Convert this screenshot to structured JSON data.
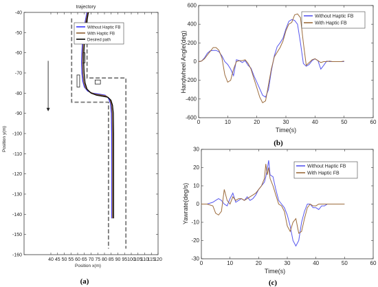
{
  "chart_data": [
    {
      "type": "line",
      "panel_label": "(a)",
      "title": "trajectory",
      "xlabel": "Position x(m)",
      "ylabel": "Position y(m)",
      "xlim": [
        20,
        120
      ],
      "ylim": [
        -160,
        -40
      ],
      "xticks": [
        40,
        45,
        50,
        55,
        60,
        65,
        70,
        75,
        80,
        85,
        90,
        95,
        100,
        105,
        110,
        115,
        120
      ],
      "yticks": [
        -40,
        -50,
        -60,
        -70,
        -80,
        -90,
        -100,
        -110,
        -120,
        -130,
        -140,
        -150,
        -160
      ],
      "legend": "top-right",
      "series": [
        {
          "name": "Without Haptic FB",
          "color": "#3333ff",
          "x": [
            67,
            65.5,
            64.5,
            63.6,
            63.2,
            63,
            63.2,
            63.8,
            65,
            67.5,
            71,
            76,
            80.5,
            83,
            84.5,
            85.2,
            85.4,
            85.5,
            85.5,
            85.5
          ],
          "y": [
            -40,
            -45,
            -50,
            -55,
            -60,
            -65,
            -70,
            -74,
            -77,
            -79,
            -80,
            -80.5,
            -81,
            -82.5,
            -85,
            -90,
            -100,
            -115,
            -130,
            -142
          ]
        },
        {
          "name": "With Haptic FB",
          "color": "#8b5a2b",
          "x": [
            67.5,
            66,
            65,
            64.2,
            63.8,
            63.6,
            63.9,
            64.5,
            66,
            69,
            73,
            78,
            81.5,
            84,
            85.2,
            85.8,
            86,
            86,
            86,
            86
          ],
          "y": [
            -40,
            -45,
            -50,
            -55,
            -60,
            -65,
            -70,
            -74.5,
            -77.5,
            -79.5,
            -80.5,
            -81,
            -81.5,
            -83,
            -85.5,
            -90,
            -100,
            -115,
            -130,
            -142
          ]
        },
        {
          "name": "Desired path",
          "color": "#000000",
          "x": [
            68,
            66.7,
            65.7,
            65,
            64.6,
            64.5,
            64.8,
            65.5,
            67,
            70,
            74,
            79,
            82.5,
            84.8,
            86,
            86.6,
            86.8,
            86.8,
            86.8,
            86.8
          ],
          "y": [
            -40,
            -45,
            -50,
            -55,
            -60,
            -65,
            -70,
            -74.8,
            -78,
            -80,
            -81,
            -81.6,
            -82,
            -83.5,
            -86,
            -90,
            -100,
            -115,
            -130,
            -142
          ]
        }
      ],
      "boundaries": [
        {
          "x": [
            55.5,
            55.5,
            83,
            83,
            83
          ],
          "y": [
            -43,
            -84.5,
            -84.5,
            -84.5,
            -157
          ]
        },
        {
          "x": [
            67,
            67,
            96,
            96
          ],
          "y": [
            -43,
            -72.5,
            -72.5,
            -157
          ]
        }
      ],
      "obstacles": [
        {
          "x": 59.5,
          "y": -77,
          "w": 2,
          "h": 6
        },
        {
          "x": 63.5,
          "y": -65,
          "w": 2,
          "h": 5
        },
        {
          "x": 73,
          "y": -75.5,
          "w": 4,
          "h": 2
        }
      ],
      "arrow": {
        "x": 38,
        "y_start": -64,
        "y_end": -89
      }
    },
    {
      "type": "line",
      "panel_label": "(b)",
      "xlabel": "Time(s)",
      "ylabel": "Handwheel Angle(deg)",
      "xlim": [
        0,
        60
      ],
      "ylim": [
        -600,
        600
      ],
      "xticks": [
        0,
        10,
        20,
        30,
        40,
        50,
        60
      ],
      "yticks": [
        -600,
        -400,
        -200,
        0,
        200,
        400,
        600
      ],
      "legend": "top-right",
      "series": [
        {
          "name": "Without Haptic FB",
          "color": "#5555ee",
          "x": [
            0,
            1,
            2,
            3,
            4,
            5,
            6,
            7,
            8,
            9,
            10,
            11,
            12,
            13,
            14,
            15,
            16,
            17,
            18,
            19,
            20,
            21,
            22,
            23,
            24,
            25,
            26,
            27,
            28,
            29,
            30,
            31,
            32,
            33,
            34,
            35,
            36,
            37,
            38,
            39,
            40,
            41,
            42,
            43,
            44,
            45,
            46,
            47,
            48,
            49,
            50
          ],
          "y": [
            0,
            5,
            40,
            90,
            115,
            120,
            120,
            105,
            60,
            0,
            -30,
            -80,
            -150,
            20,
            10,
            -10,
            10,
            -40,
            -70,
            -150,
            -220,
            -290,
            -360,
            -380,
            -300,
            -100,
            60,
            160,
            200,
            250,
            350,
            430,
            450,
            440,
            400,
            200,
            -20,
            -50,
            -30,
            10,
            30,
            10,
            -80,
            -40,
            5,
            0,
            0,
            0,
            0,
            0,
            0
          ]
        },
        {
          "name": "With Haptic FB",
          "color": "#9b6a3a",
          "x": [
            0,
            1,
            2,
            3,
            4,
            5,
            6,
            7,
            8,
            9,
            10,
            11,
            12,
            13,
            14,
            15,
            16,
            17,
            18,
            19,
            20,
            21,
            22,
            23,
            24,
            25,
            26,
            27,
            28,
            29,
            30,
            31,
            32,
            33,
            34,
            35,
            36,
            37,
            38,
            39,
            40,
            41,
            42,
            43,
            44,
            45,
            46,
            47,
            48,
            49,
            50
          ],
          "y": [
            0,
            5,
            30,
            70,
            110,
            150,
            150,
            120,
            40,
            -140,
            -220,
            -200,
            -80,
            0,
            10,
            10,
            20,
            -20,
            -80,
            -180,
            -280,
            -380,
            -440,
            -420,
            -250,
            -80,
            50,
            100,
            150,
            220,
            330,
            400,
            420,
            500,
            510,
            470,
            200,
            -40,
            -10,
            20,
            30,
            10,
            -10,
            0,
            0,
            5,
            0,
            0,
            0,
            0,
            5
          ]
        }
      ]
    },
    {
      "type": "line",
      "panel_label": "(c)",
      "xlabel": "Time(s)",
      "ylabel": "Yawrate(deg/s)",
      "xlim": [
        0,
        60
      ],
      "ylim": [
        -30,
        30
      ],
      "xticks": [
        0,
        10,
        20,
        30,
        40,
        50,
        60
      ],
      "yticks": [
        -30,
        -20,
        -10,
        0,
        10,
        20,
        30
      ],
      "legend": "top-right",
      "series": [
        {
          "name": "Without Haptic FB",
          "color": "#5555ee",
          "x": [
            0,
            2,
            4,
            5,
            6,
            7,
            8,
            9,
            10,
            11,
            12,
            13,
            14,
            15,
            16,
            17,
            18,
            19,
            20,
            21,
            22,
            22.5,
            23,
            23.5,
            24,
            25,
            26,
            27,
            28,
            29,
            30,
            31,
            32,
            33,
            34,
            35,
            36,
            37,
            38,
            39,
            40,
            41,
            42,
            43,
            44,
            46,
            48,
            50
          ],
          "y": [
            0,
            0,
            1,
            2,
            3,
            2,
            0,
            -1,
            3,
            6,
            1,
            2,
            3,
            2,
            4,
            2,
            3,
            5,
            8,
            10,
            12,
            15,
            19,
            24,
            16,
            15,
            8,
            2,
            0,
            -2,
            -6,
            -12,
            -20,
            -23,
            -20,
            -10,
            -4,
            0,
            0,
            -2,
            -2,
            -3,
            -1,
            -1,
            0,
            0,
            0,
            0
          ]
        },
        {
          "name": "With Haptic FB",
          "color": "#9b6a3a",
          "x": [
            0,
            2,
            4,
            5,
            6,
            7,
            8,
            9,
            10,
            11,
            12,
            13,
            14,
            15,
            16,
            17,
            18,
            19,
            20,
            21,
            22,
            22.5,
            23,
            23.5,
            24,
            25,
            26,
            27,
            28,
            29,
            30,
            31,
            32,
            33,
            34,
            35,
            36,
            37,
            38,
            39,
            40,
            41,
            42,
            43,
            44,
            46,
            48,
            50
          ],
          "y": [
            0,
            0,
            -1,
            -5,
            -6,
            -4,
            8,
            2,
            0,
            4,
            2,
            3,
            3,
            2,
            3,
            4,
            5,
            6,
            8,
            10,
            14,
            22,
            16,
            20,
            14,
            10,
            5,
            0,
            -1,
            -4,
            -12,
            -15,
            -10,
            -8,
            -16,
            -15,
            -8,
            -2,
            0,
            -1,
            -1,
            0,
            0,
            0,
            0,
            0,
            0,
            0
          ]
        }
      ]
    }
  ]
}
